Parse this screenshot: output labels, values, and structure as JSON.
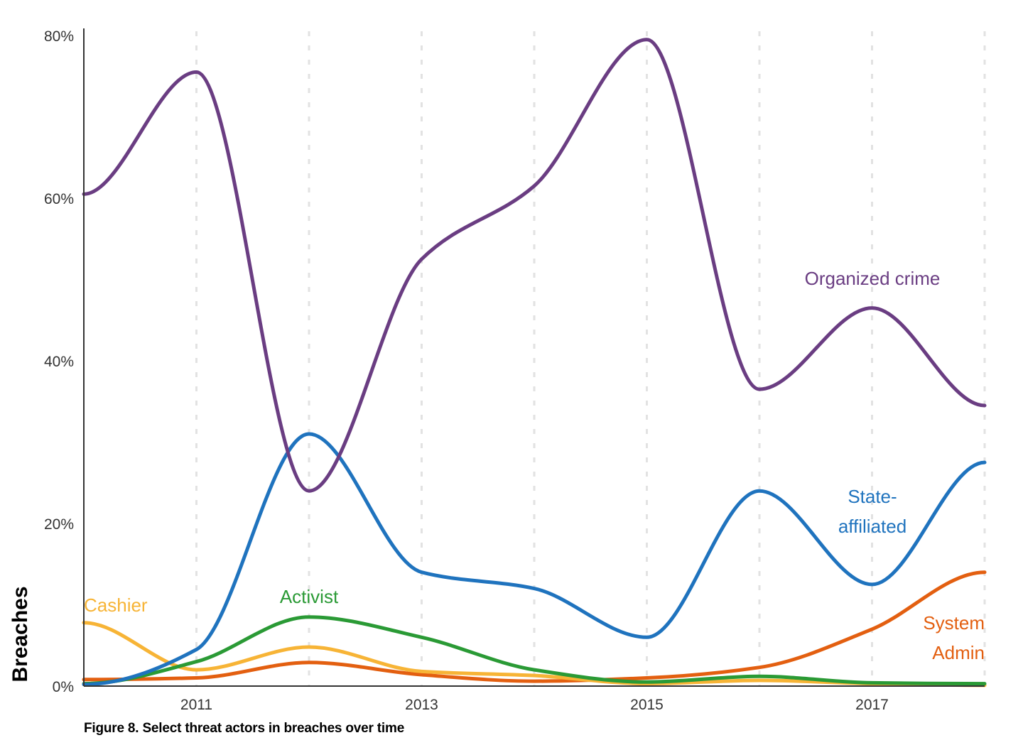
{
  "figure": {
    "caption": "Figure 8. Select threat actors in breaches over time"
  },
  "chart_data": {
    "type": "line",
    "caption": "Figure 8. Select threat actors in breaches over time",
    "xlabel": "",
    "ylabel": "Breaches",
    "x": [
      2010,
      2011,
      2012,
      2013,
      2014,
      2015,
      2016,
      2017,
      2018
    ],
    "xticks": [
      2011,
      2013,
      2015,
      2017
    ],
    "xtick_labels": [
      "2011",
      "2013",
      "2015",
      "2017"
    ],
    "yticks": [
      0,
      20,
      40,
      60,
      80
    ],
    "ytick_labels": [
      "0%",
      "20%",
      "40%",
      "60%",
      "80%"
    ],
    "xlim": [
      2010,
      2018
    ],
    "ylim": [
      0,
      80
    ],
    "grid": "vertical dashed at each year",
    "series": [
      {
        "name": "Organized crime",
        "label_lines": [
          "Organized crime"
        ],
        "color": "#6a3d82",
        "values": [
          60.5,
          75.5,
          24,
          52.5,
          61.5,
          79.5,
          36.5,
          46.5,
          34.5
        ]
      },
      {
        "name": "State-affiliated",
        "label_lines": [
          "State-",
          "affiliated"
        ],
        "color": "#1f73be",
        "values": [
          0.2,
          4.5,
          31,
          14,
          12,
          6,
          24,
          12.5,
          27.5
        ]
      },
      {
        "name": "Activist",
        "label_lines": [
          "Activist"
        ],
        "color": "#2a9a35",
        "values": [
          0.3,
          3,
          8.5,
          6,
          2,
          0.5,
          1.2,
          0.4,
          0.3
        ]
      },
      {
        "name": "Cashier",
        "label_lines": [
          "Cashier"
        ],
        "color": "#f7b436",
        "values": [
          7.8,
          2,
          4.8,
          1.8,
          1.3,
          0.3,
          0.7,
          0.3,
          0.1
        ]
      },
      {
        "name": "System Admin",
        "label_lines": [
          "System",
          "Admin"
        ],
        "color": "#e35f10",
        "values": [
          0.8,
          1,
          2.9,
          1.4,
          0.6,
          1,
          2.3,
          7,
          14
        ]
      }
    ]
  }
}
